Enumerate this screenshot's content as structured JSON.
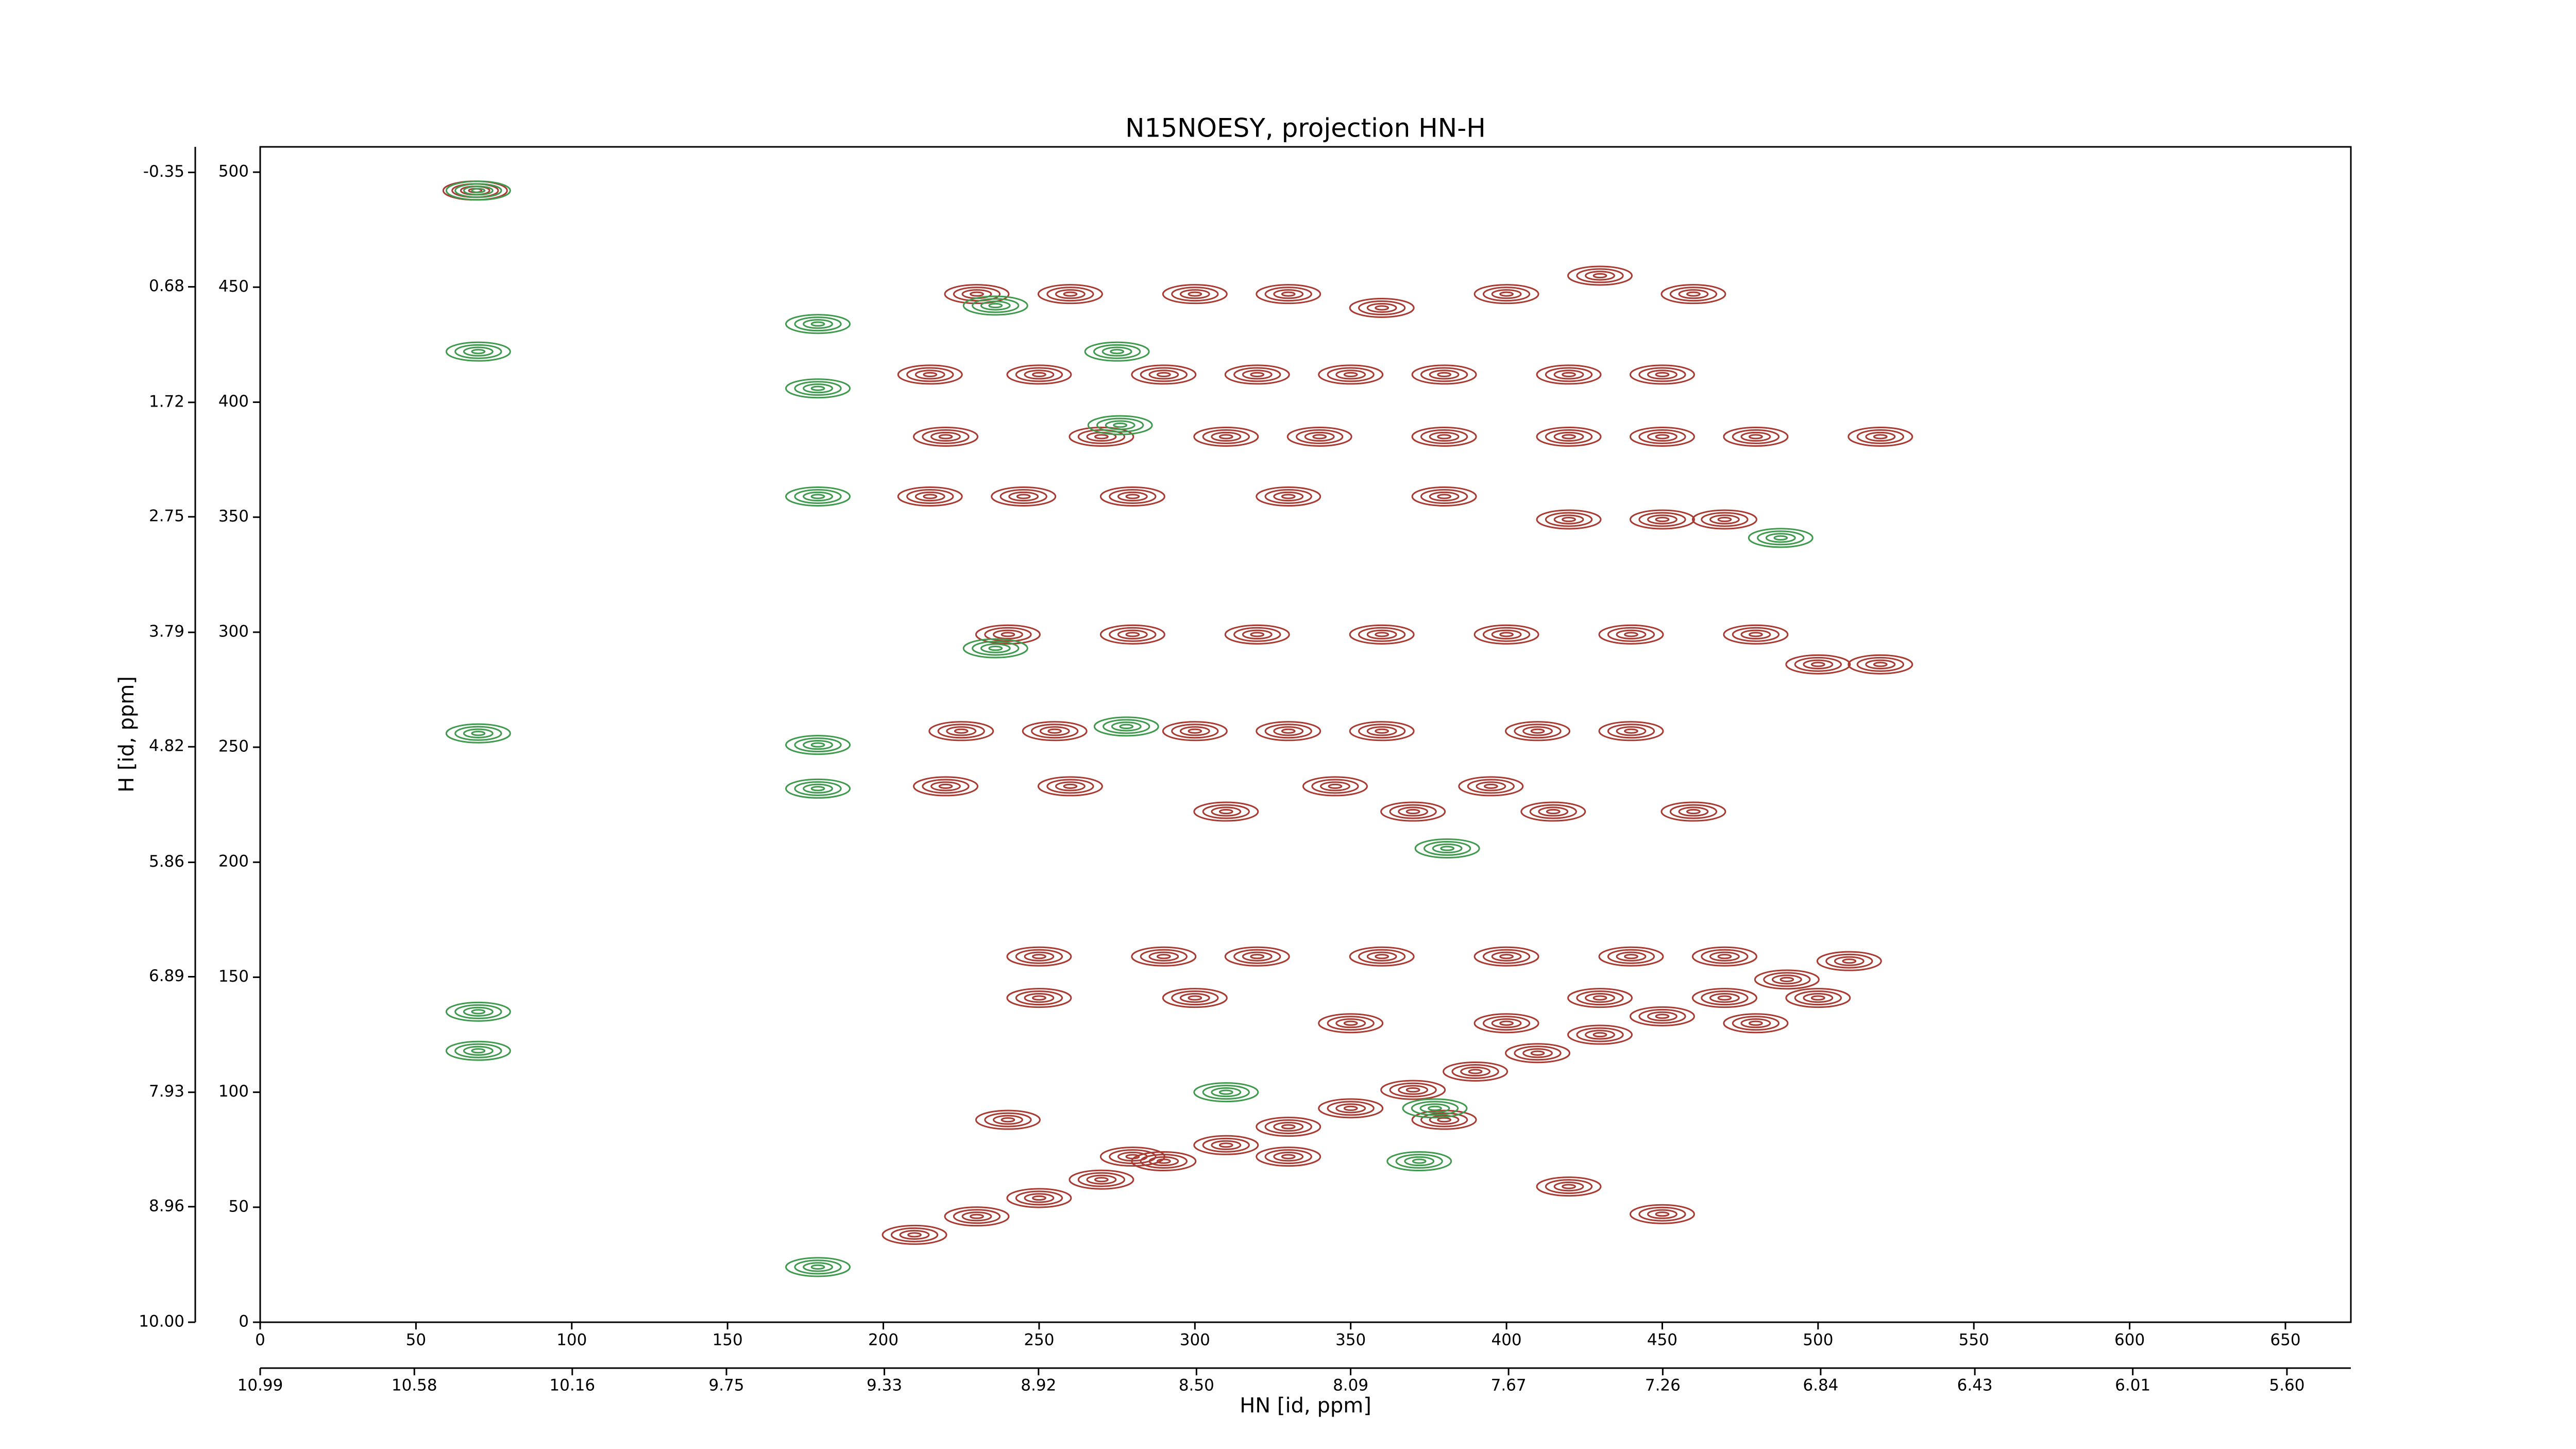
{
  "chart_data": {
    "type": "contour",
    "title": "N15NOESY, projection HN-H",
    "x_label": "HN [id, ppm]",
    "y_label": "H [id, ppm]",
    "xlim": [
      0,
      671
    ],
    "xticks": [
      0,
      50,
      100,
      150,
      200,
      250,
      300,
      350,
      400,
      450,
      500,
      550,
      600,
      650
    ],
    "ylim": [
      0,
      511
    ],
    "yticks": [
      0,
      50,
      100,
      150,
      200,
      250,
      300,
      350,
      400,
      450,
      500
    ],
    "x2lim": [
      10.99,
      5.43
    ],
    "x2ticks": [
      10.99,
      10.58,
      10.16,
      9.75,
      9.33,
      8.92,
      {
        "value": 8.5,
        "label": "8.50"
      },
      8.09,
      7.67,
      7.26,
      6.84,
      6.43,
      6.01,
      {
        "value": 5.6,
        "label": "5.60"
      }
    ],
    "y2lim": [
      10.0,
      -0.58
    ],
    "y2ticks": [
      {
        "value": 10,
        "label": "10.00"
      },
      8.96,
      7.93,
      6.89,
      5.86,
      4.82,
      3.79,
      2.75,
      1.72,
      0.68,
      -0.35
    ],
    "series": [
      {
        "color": "#a83a32",
        "x": [
          210,
          230,
          250,
          270,
          290,
          310,
          330,
          350,
          370,
          390,
          410,
          430,
          450,
          470,
          490,
          510,
          69,
          230,
          260,
          300,
          330,
          360,
          400,
          430,
          460,
          215,
          250,
          290,
          320,
          350,
          380,
          420,
          450,
          220,
          270,
          310,
          340,
          380,
          420,
          450,
          480,
          520,
          215,
          245,
          280,
          330,
          380,
          420,
          450,
          470,
          240,
          280,
          320,
          360,
          400,
          440,
          480,
          500,
          520,
          225,
          255,
          300,
          330,
          360,
          410,
          440,
          250,
          300,
          350,
          400,
          430,
          480,
          500,
          220,
          260,
          310,
          345,
          370,
          395,
          415,
          460,
          250,
          290,
          320,
          360,
          400,
          440,
          470,
          240,
          280,
          330,
          380,
          420,
          450
        ],
        "y": [
          38,
          46,
          54,
          62,
          70,
          77,
          85,
          93,
          101,
          109,
          117,
          125,
          133,
          141,
          149,
          157,
          492,
          447,
          447,
          447,
          447,
          441,
          447,
          455,
          447,
          412,
          412,
          412,
          412,
          412,
          412,
          412,
          412,
          385,
          385,
          385,
          385,
          385,
          385,
          385,
          385,
          385,
          359,
          359,
          359,
          359,
          359,
          349,
          349,
          349,
          299,
          299,
          299,
          299,
          299,
          299,
          299,
          286,
          286,
          257,
          257,
          257,
          257,
          257,
          257,
          257,
          141,
          141,
          130,
          130,
          141,
          130,
          141,
          233,
          233,
          222,
          233,
          222,
          233,
          222,
          222,
          159,
          159,
          159,
          159,
          159,
          159,
          159,
          88,
          72,
          72,
          88,
          59,
          47
        ]
      },
      {
        "color": "#3f9a4e",
        "x": [
          70,
          70,
          179,
          179,
          179,
          70,
          179,
          179,
          70,
          70,
          179,
          275,
          276,
          236,
          278,
          236,
          377,
          372,
          488,
          381,
          310
        ],
        "y": [
          422,
          256,
          434,
          406,
          359,
          135,
          251,
          232,
          118,
          492,
          24,
          422,
          390,
          442,
          259,
          293,
          93,
          70,
          341,
          206,
          100
        ]
      }
    ]
  }
}
